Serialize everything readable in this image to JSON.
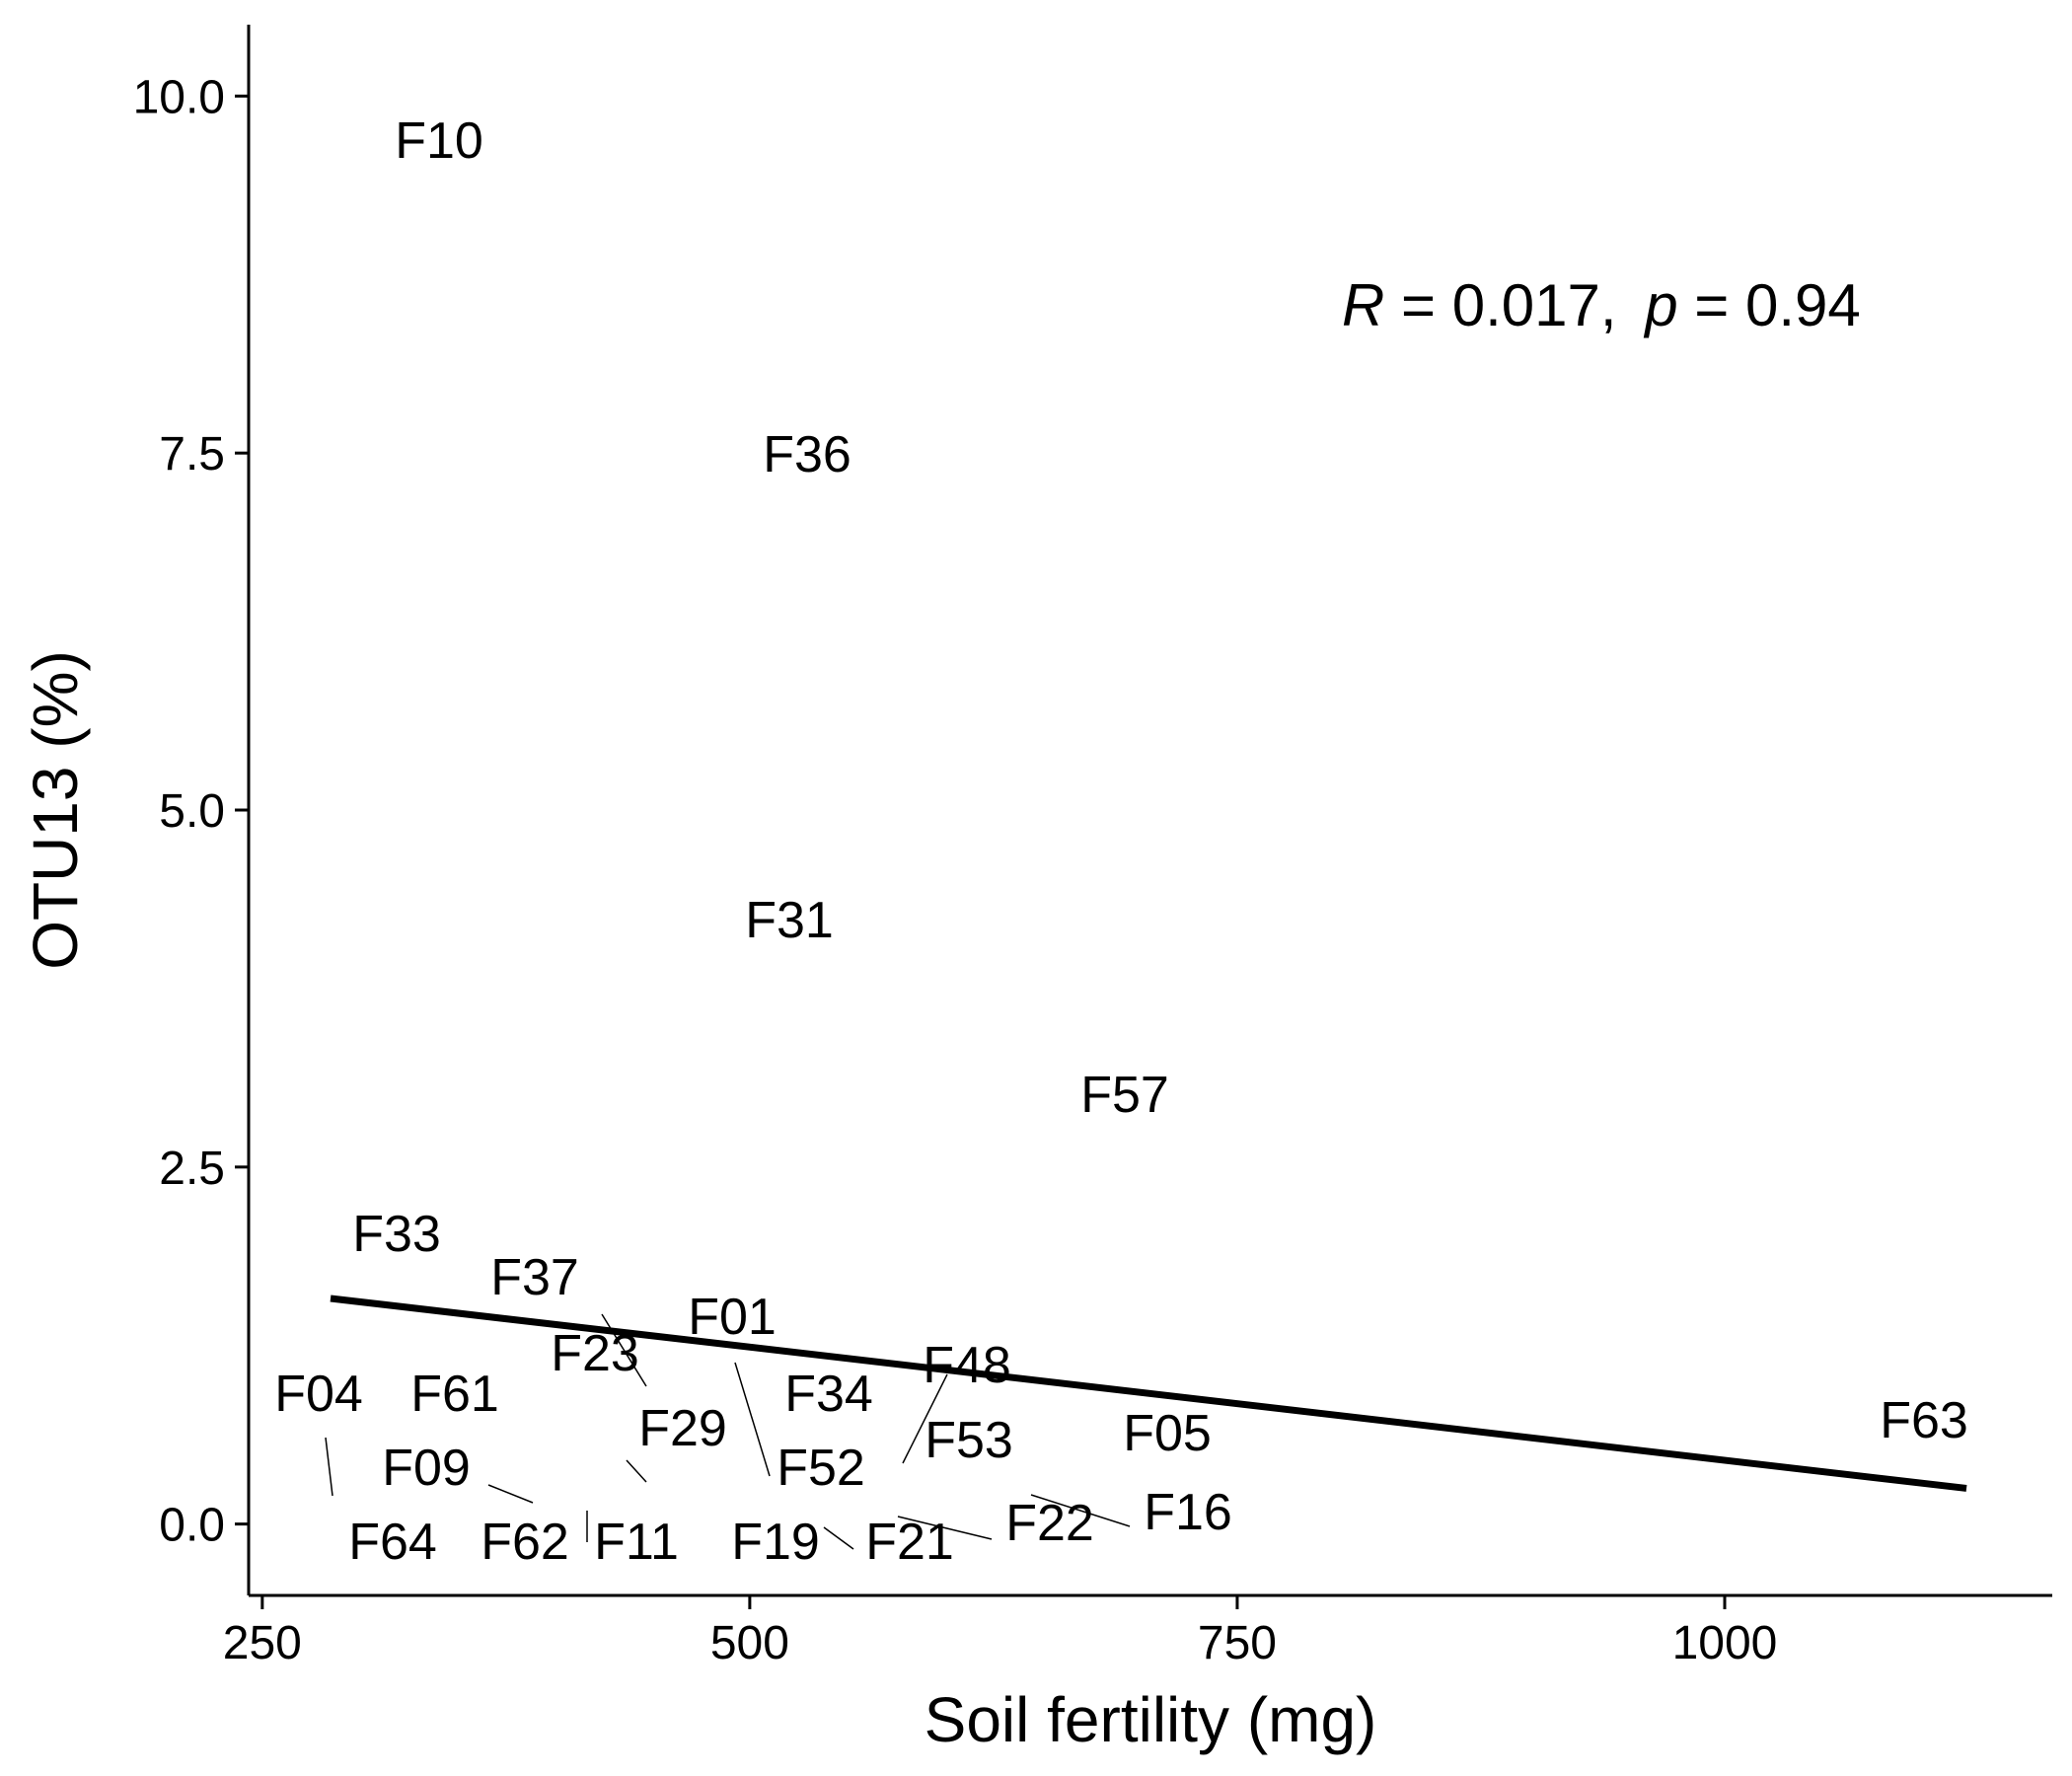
{
  "chart_data": {
    "type": "scatter",
    "title": "",
    "xlabel": "Soil fertility (mg)",
    "ylabel": "OTU13 (%)",
    "xlim": [
      243,
      1168
    ],
    "ylim": [
      -0.5,
      10.5
    ],
    "xticks": [
      250,
      500,
      750,
      1000
    ],
    "xtick_labels": [
      "250",
      "500",
      "750",
      "1000"
    ],
    "yticks": [
      0.0,
      2.5,
      5.0,
      7.5,
      10.0
    ],
    "ytick_labels": [
      "0.0",
      "2.5",
      "5.0",
      "7.5",
      "10.0"
    ],
    "grid": false,
    "legend": "none",
    "annotation": {
      "r_symbol": "R",
      "r_value": "= 0.017,",
      "p_symbol": "p",
      "p_value": "= 0.94"
    },
    "points": [
      {
        "label": "F10",
        "x": 340,
        "y": 9.55
      },
      {
        "label": "F36",
        "x": 527,
        "y": 7.35
      },
      {
        "label": "F31",
        "x": 518,
        "y": 4.05
      },
      {
        "label": "F57",
        "x": 692,
        "y": 2.85
      },
      {
        "label": "F33",
        "x": 285,
        "y": 1.85
      },
      {
        "label": "F37",
        "x": 364,
        "y": 1.55
      },
      {
        "label": "F01",
        "x": 503,
        "y": 1.25
      },
      {
        "label": "F23",
        "x": 443,
        "y": 1.0
      },
      {
        "label": "F48",
        "x": 595,
        "y": 0.85
      },
      {
        "label": "F04",
        "x": 279,
        "y": 0.75
      },
      {
        "label": "F61",
        "x": 336,
        "y": 0.75
      },
      {
        "label": "F34",
        "x": 547,
        "y": 0.75
      },
      {
        "label": "F29",
        "x": 446,
        "y": 0.3
      },
      {
        "label": "F05",
        "x": 703,
        "y": 0.5
      },
      {
        "label": "F63",
        "x": 1124,
        "y": 0.55
      },
      {
        "label": "F53",
        "x": 575,
        "y": 0.4
      },
      {
        "label": "F09",
        "x": 395,
        "y": 0.15
      },
      {
        "label": "F52",
        "x": 508,
        "y": 0.2
      },
      {
        "label": "F16",
        "x": 770,
        "y": 0.0
      },
      {
        "label": "F22",
        "x": 685,
        "y": -0.1
      },
      {
        "label": "F64",
        "x": 285,
        "y": 0.2
      },
      {
        "label": "F62",
        "x": 412,
        "y": -0.1
      },
      {
        "label": "F11",
        "x": 413,
        "y": -0.1
      },
      {
        "label": "F19",
        "x": 498,
        "y": -0.2
      },
      {
        "label": "F21",
        "x": 524,
        "y": -0.2
      }
    ],
    "regression_line": {
      "x": [
        285,
        1124
      ],
      "y": [
        1.58,
        0.25
      ]
    }
  }
}
